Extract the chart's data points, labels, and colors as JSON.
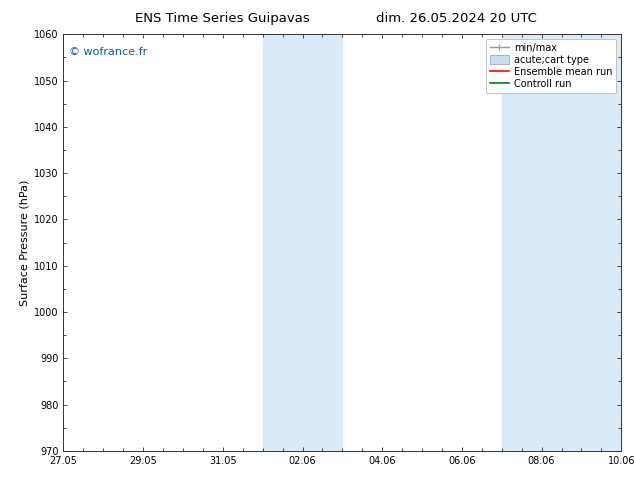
{
  "title_left": "ENS Time Series Guipavas",
  "title_right": "dim. 26.05.2024 20 UTC",
  "ylabel": "Surface Pressure (hPa)",
  "ylim": [
    970,
    1060
  ],
  "yticks": [
    970,
    980,
    990,
    1000,
    1010,
    1020,
    1030,
    1040,
    1050,
    1060
  ],
  "xlim_start": "2024-05-27",
  "xlim_end": "2024-06-10",
  "xticklabels": [
    "27.05",
    "29.05",
    "31.05",
    "02.06",
    "04.06",
    "06.06",
    "08.06",
    "10.06"
  ],
  "xtick_values": [
    0,
    2,
    4,
    6,
    8,
    10,
    12,
    14
  ],
  "x_total_days": 14,
  "shaded_bands": [
    {
      "x_start": 5.0,
      "x_end": 7.0,
      "color": "#daeaf7"
    },
    {
      "x_start": 11.0,
      "x_end": 14.0,
      "color": "#daeaf7"
    }
  ],
  "minor_xtick_step": 0.5,
  "watermark_text": "© wofrance.fr",
  "watermark_color": "#0055cc",
  "watermark_fontsize": 8,
  "legend_entries": [
    {
      "label": "min/max",
      "color": "#999999",
      "lw": 1.0,
      "style": "errbar"
    },
    {
      "label": "acute;cart type",
      "color": "#c8dff0",
      "lw": 6,
      "style": "rect"
    },
    {
      "label": "Ensemble mean run",
      "color": "red",
      "lw": 1.2,
      "style": "line"
    },
    {
      "label": "Controll run",
      "color": "green",
      "lw": 1.2,
      "style": "line"
    }
  ],
  "bg_color": "#ffffff",
  "plot_bg_color": "#ffffff",
  "title_fontsize": 9.5,
  "axis_fontsize": 7,
  "ylabel_fontsize": 8,
  "legend_fontsize": 7
}
